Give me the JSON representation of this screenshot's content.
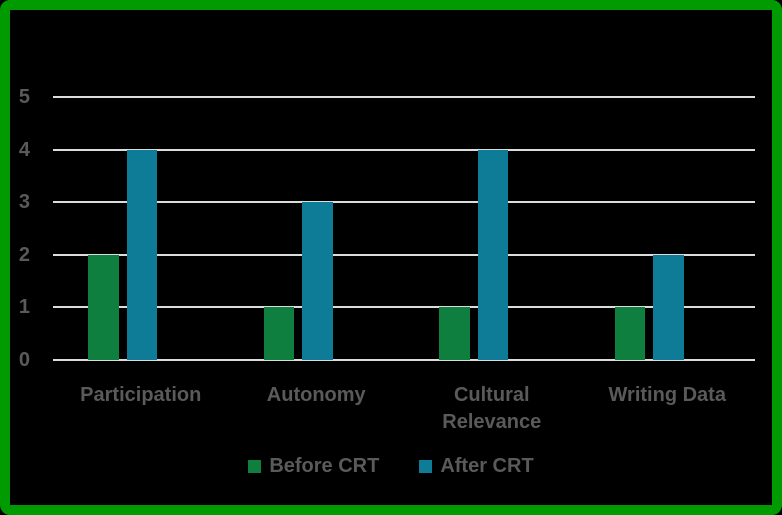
{
  "chart_data": {
    "type": "bar",
    "title": "",
    "xlabel": "",
    "ylabel": "",
    "categories": [
      "Participation",
      "Autonomy",
      "Cultural Relevance",
      "Writing Data"
    ],
    "series": [
      {
        "name": "Before CRT",
        "color": "#0E7F3E",
        "values": [
          2,
          1,
          1,
          1
        ]
      },
      {
        "name": "After CRT",
        "color": "#0E7C96",
        "values": [
          4,
          3,
          4,
          2
        ]
      }
    ],
    "ylim": [
      0,
      5
    ],
    "yticks": [
      0,
      1,
      2,
      3,
      4,
      5
    ],
    "grid": true,
    "legend_position": "bottom"
  },
  "style": {
    "background": "#000000",
    "frame_border": "#009B00",
    "gridline": "#DCDCDC",
    "text": "#5A5A5A"
  }
}
